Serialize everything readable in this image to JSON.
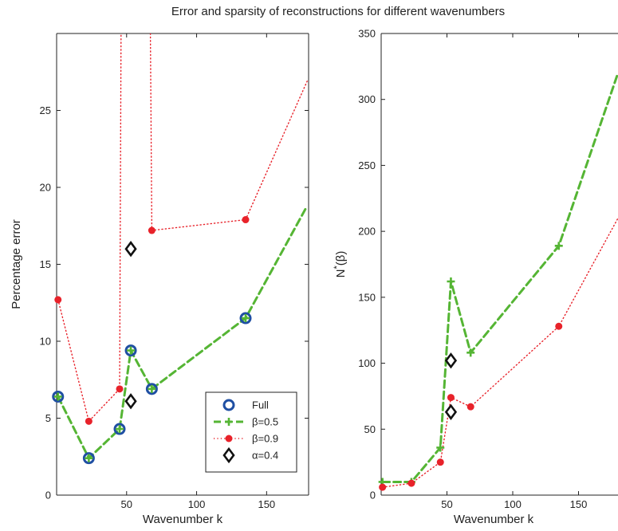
{
  "figure_title": "Error and sparsity of reconstructions for different wavenumbers",
  "colors": {
    "full": "#1f4fa3",
    "beta05": "#55b534",
    "beta09": "#e8222a",
    "alpha": "#111111",
    "axis": "#222222"
  },
  "chart_data": [
    {
      "type": "line",
      "xlabel": "Wavenumber k",
      "ylabel": "Percentage error",
      "xlim": [
        0,
        180
      ],
      "ylim": [
        0,
        30
      ],
      "xticks": [
        50,
        100,
        150
      ],
      "yticks": [
        0,
        5,
        10,
        15,
        20,
        25
      ],
      "grid": false,
      "legend_position": "bottom-right",
      "series": [
        {
          "name": "Full",
          "style": "blue-circles",
          "x": [
            1,
            23,
            45,
            53,
            68,
            135,
            179
          ],
          "y": [
            6.4,
            2.4,
            4.3,
            9.4,
            6.9,
            11.5,
            18.8
          ]
        },
        {
          "name": "β=0.5",
          "style": "green-dashed-plus",
          "x": [
            1,
            23,
            45,
            53,
            68,
            135,
            179
          ],
          "y": [
            6.4,
            2.4,
            4.3,
            9.4,
            6.9,
            11.5,
            18.8
          ]
        },
        {
          "name": "β=0.9",
          "style": "red-dotted-dots",
          "x": [
            1,
            23,
            45,
            46,
            53,
            67,
            68,
            135,
            179
          ],
          "y": [
            12.7,
            4.8,
            6.9,
            30,
            null,
            30,
            17.2,
            17.9,
            26.9
          ]
        },
        {
          "name": "α=0.4",
          "style": "black-diamonds",
          "x": [
            53,
            53
          ],
          "y": [
            16.0,
            6.1
          ]
        }
      ]
    },
    {
      "type": "line",
      "xlabel": "Wavenumber k",
      "ylabel": "N*(β)",
      "xlim": [
        0,
        180
      ],
      "ylim": [
        0,
        350
      ],
      "xticks": [
        50,
        100,
        150
      ],
      "yticks": [
        0,
        50,
        100,
        150,
        200,
        250,
        300,
        350
      ],
      "grid": false,
      "series": [
        {
          "name": "β=0.5",
          "style": "green-dashed-plus",
          "x": [
            1,
            23,
            45,
            53,
            68,
            135,
            180
          ],
          "y": [
            10,
            10,
            36,
            162,
            108,
            189,
            320
          ]
        },
        {
          "name": "β=0.9",
          "style": "red-dotted-dots",
          "x": [
            1,
            23,
            45,
            53,
            68,
            135,
            180
          ],
          "y": [
            6,
            9,
            25,
            74,
            67,
            128,
            210
          ]
        },
        {
          "name": "α=0.4",
          "style": "black-diamonds",
          "x": [
            53,
            53
          ],
          "y": [
            102,
            63
          ]
        }
      ]
    }
  ]
}
